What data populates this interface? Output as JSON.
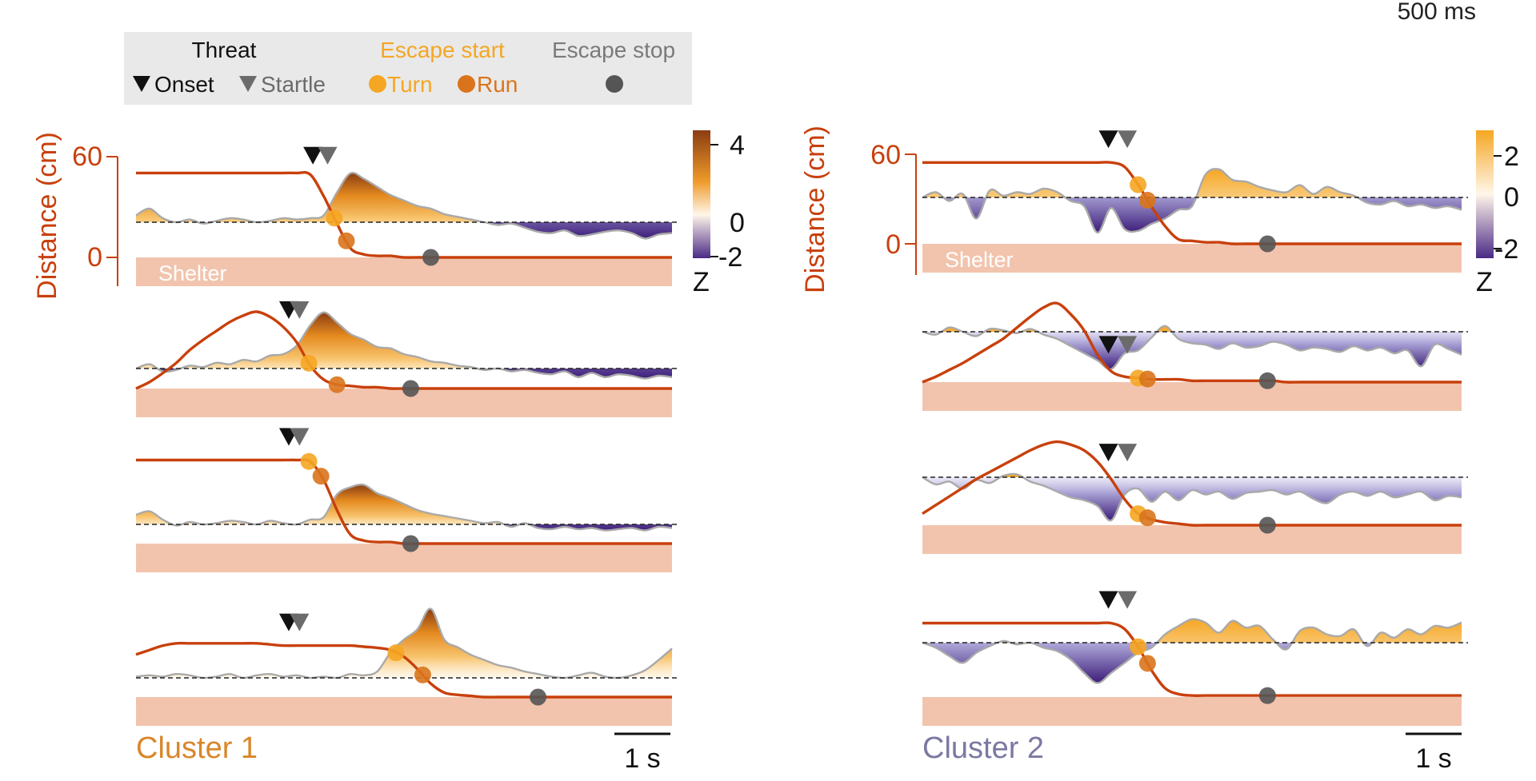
{
  "corner_label": "500 ms",
  "legend": {
    "threat_header": "Threat",
    "onset_label": "Onset",
    "startle_label": "Startle",
    "escape_start_header": "Escape start",
    "turn_label": "Turn",
    "run_label": "Run",
    "escape_stop_header": "Escape stop"
  },
  "colors": {
    "distance": "#c8400c",
    "shelter": "#f2c4ad",
    "onset": "#111111",
    "startle": "#6b6b6b",
    "turn": "#f5a623",
    "run": "#d9741c",
    "stop": "#555555",
    "cluster1": "#d9862a",
    "cluster2": "#7b78a2",
    "warm": "#b8621a",
    "cool": "#4a2a86"
  },
  "chart_data": [
    {
      "type": "line",
      "title": "Cluster 1",
      "ylabel": "Distance (cm)",
      "yticks": [
        "60",
        "0"
      ],
      "shelter_label": "Shelter",
      "scalebar_label": "1 s",
      "colorbar": {
        "label": "Z",
        "ticks": [
          "4",
          "0",
          "-2"
        ],
        "range": [
          -2,
          4
        ]
      },
      "traces": [
        {
          "distance": [
            55,
            55,
            55,
            55,
            55,
            55,
            55,
            55,
            55,
            55,
            55,
            55,
            55,
            54,
            40,
            22,
            6,
            2,
            1,
            1,
            0,
            0,
            0,
            0,
            0,
            0,
            0,
            0,
            0,
            0,
            0,
            0,
            0,
            0,
            0,
            0,
            0,
            0,
            0,
            0,
            0
          ],
          "z": [
            0.5,
            1.0,
            0.3,
            0.0,
            0.2,
            -0.1,
            0.1,
            0.3,
            0.2,
            0.0,
            0.1,
            0.3,
            0.2,
            0.3,
            0.5,
            2.2,
            3.6,
            3.2,
            2.6,
            2.0,
            1.6,
            1.2,
            1.0,
            0.6,
            0.4,
            0.2,
            0.0,
            -0.2,
            -0.1,
            -0.4,
            -0.7,
            -0.8,
            -0.6,
            -1.0,
            -0.9,
            -0.7,
            -0.6,
            -0.8,
            -1.2,
            -0.9,
            -0.8
          ],
          "events": {
            "onset": 13.2,
            "startle": 14.3,
            "turn": 14.8,
            "run": 15.7,
            "stop": 22.0
          }
        },
        {
          "distance": [
            0,
            5,
            12,
            20,
            30,
            38,
            45,
            52,
            57,
            60,
            56,
            48,
            36,
            18,
            7,
            3,
            2,
            1,
            1,
            0,
            0,
            0,
            0,
            0,
            0,
            0,
            0,
            0,
            0,
            0,
            0,
            0,
            0,
            0,
            0,
            0,
            0,
            0,
            0,
            0,
            0
          ],
          "z": [
            0.0,
            0.3,
            -0.2,
            -0.1,
            0.2,
            0.1,
            0.4,
            0.3,
            0.6,
            0.5,
            0.9,
            1.0,
            1.6,
            3.0,
            3.9,
            3.2,
            2.4,
            2.0,
            1.5,
            1.4,
            1.0,
            0.8,
            0.5,
            0.4,
            0.2,
            0.1,
            -0.1,
            0.0,
            -0.2,
            -0.1,
            -0.3,
            -0.4,
            -0.2,
            -0.6,
            -0.3,
            -0.6,
            -0.4,
            -0.5,
            -0.7,
            -0.5,
            -0.6
          ],
          "events": {
            "onset": 11.4,
            "startle": 12.2,
            "turn": 12.9,
            "run": 15.0,
            "stop": 20.5
          }
        },
        {
          "distance": [
            55,
            55,
            55,
            55,
            55,
            55,
            55,
            55,
            55,
            55,
            55,
            55,
            55,
            54,
            42,
            22,
            6,
            2,
            1,
            1,
            0,
            0,
            0,
            0,
            0,
            0,
            0,
            0,
            0,
            0,
            0,
            0,
            0,
            0,
            0,
            0,
            0,
            0,
            0,
            0,
            0
          ],
          "z": [
            0.8,
            1.1,
            0.4,
            -0.1,
            0.2,
            0.0,
            0.1,
            0.3,
            0.2,
            0.0,
            0.3,
            0.1,
            0.0,
            0.4,
            0.6,
            2.5,
            3.1,
            3.3,
            2.6,
            2.2,
            1.7,
            1.2,
            0.9,
            0.7,
            0.5,
            0.3,
            0.1,
            0.2,
            -0.2,
            0.1,
            -0.3,
            -0.4,
            -0.2,
            -0.4,
            -0.3,
            -0.5,
            -0.4,
            -0.3,
            -0.5,
            -0.2,
            -0.3
          ],
          "events": {
            "onset": 11.4,
            "startle": 12.2,
            "turn": 12.9,
            "run": 13.8,
            "stop": 20.5
          }
        },
        {
          "distance": [
            38,
            42,
            46,
            48,
            48,
            48,
            48,
            48,
            48,
            48,
            47,
            46,
            46,
            46,
            46,
            46,
            46,
            45,
            44,
            42,
            36,
            25,
            12,
            4,
            2,
            1,
            0,
            0,
            0,
            0,
            0,
            0,
            0,
            0,
            0,
            0,
            0,
            0,
            0,
            0,
            0
          ],
          "z": [
            0.1,
            0.2,
            0.1,
            0.3,
            0.2,
            0.0,
            0.1,
            0.3,
            0.0,
            0.2,
            0.3,
            0.1,
            0.2,
            0.0,
            0.1,
            0.0,
            0.3,
            0.2,
            0.5,
            2.0,
            3.0,
            3.8,
            5.4,
            3.0,
            2.4,
            1.8,
            1.4,
            1.0,
            0.8,
            0.5,
            0.3,
            0.1,
            0.0,
            0.2,
            0.4,
            0.1,
            0.0,
            0.2,
            0.6,
            1.4,
            2.3
          ],
          "events": {
            "onset": 11.4,
            "startle": 12.2,
            "turn": 19.4,
            "run": 21.4,
            "stop": 30.0
          }
        }
      ]
    },
    {
      "type": "line",
      "title": "Cluster 2",
      "ylabel": "Distance (cm)",
      "yticks": [
        "60",
        "0"
      ],
      "shelter_label": "Shelter",
      "scalebar_label": "1 s",
      "colorbar": {
        "label": "Z",
        "ticks": [
          "2",
          "0",
          "-2"
        ],
        "range": [
          -2,
          2
        ]
      },
      "traces": [
        {
          "distance": [
            55,
            55,
            55,
            55,
            55,
            55,
            55,
            55,
            55,
            55,
            55,
            55,
            55,
            55,
            55,
            52,
            40,
            25,
            12,
            3,
            2,
            1,
            1,
            0,
            0,
            0,
            0,
            0,
            0,
            0,
            0,
            0,
            0,
            0,
            0,
            0,
            0,
            0,
            0,
            0,
            0
          ],
          "z": [
            0.0,
            0.3,
            -0.2,
            0.2,
            -1.2,
            0.4,
            0.1,
            0.3,
            0.2,
            0.5,
            0.3,
            -0.2,
            -0.5,
            -2.0,
            -0.6,
            -1.8,
            -1.9,
            -1.5,
            -1.2,
            -0.7,
            -0.5,
            1.3,
            1.6,
            1.0,
            0.9,
            0.6,
            0.4,
            0.3,
            0.7,
            0.2,
            0.6,
            0.3,
            0.1,
            -0.3,
            -0.4,
            -0.2,
            -0.5,
            -0.4,
            -0.6,
            -0.5,
            -0.7
          ],
          "events": {
            "onset": 13.8,
            "startle": 15.2,
            "turn": 16.0,
            "run": 16.7,
            "stop": 25.6
          }
        },
        {
          "distance": [
            0,
            4,
            9,
            14,
            20,
            26,
            32,
            40,
            48,
            55,
            58,
            50,
            38,
            20,
            8,
            4,
            3,
            2,
            2,
            2,
            1,
            1,
            1,
            1,
            1,
            1,
            1,
            0,
            0,
            0,
            0,
            0,
            0,
            0,
            0,
            0,
            0,
            0,
            0,
            0,
            0
          ],
          "z": [
            0.0,
            -0.2,
            0.3,
            0.0,
            -0.3,
            0.2,
            0.1,
            -0.1,
            0.2,
            -0.2,
            -0.5,
            -1.0,
            -1.5,
            -2.0,
            -2.6,
            -1.5,
            -1.3,
            -0.4,
            0.4,
            -0.5,
            -0.8,
            -0.9,
            -1.2,
            -0.8,
            -1.1,
            -1.0,
            -0.7,
            -0.9,
            -1.3,
            -1.1,
            -1.2,
            -1.4,
            -1.0,
            -1.3,
            -1.1,
            -1.5,
            -1.3,
            -2.4,
            -0.9,
            -1.2,
            -1.6
          ],
          "events": {
            "onset": 13.8,
            "startle": 15.2,
            "turn": 16.0,
            "run": 16.7,
            "stop": 25.6
          }
        },
        {
          "distance": [
            8,
            14,
            20,
            26,
            32,
            37,
            42,
            47,
            52,
            56,
            58,
            56,
            52,
            44,
            32,
            18,
            8,
            4,
            2,
            1,
            0,
            0,
            0,
            0,
            0,
            0,
            0,
            0,
            0,
            0,
            0,
            0,
            0,
            0,
            0,
            0,
            0,
            0,
            0,
            0,
            0
          ],
          "z": [
            0.0,
            -0.5,
            -0.3,
            -0.8,
            -0.2,
            -0.4,
            0.1,
            0.2,
            -0.3,
            -0.6,
            -1.0,
            -1.4,
            -1.6,
            -2.0,
            -3.0,
            -1.2,
            -0.8,
            -1.7,
            -1.0,
            -1.6,
            -0.9,
            -1.2,
            -1.0,
            -1.5,
            -1.1,
            -1.0,
            -0.9,
            -1.2,
            -1.0,
            -1.5,
            -1.8,
            -1.2,
            -1.0,
            -1.3,
            -1.0,
            -1.4,
            -1.2,
            -1.0,
            -1.6,
            -1.3,
            -1.4
          ],
          "events": {
            "onset": 13.8,
            "startle": 15.2,
            "turn": 16.0,
            "run": 16.7,
            "stop": 25.6
          }
        },
        {
          "distance": [
            50,
            50,
            50,
            50,
            50,
            50,
            50,
            50,
            50,
            50,
            50,
            50,
            50,
            50,
            50,
            46,
            34,
            18,
            6,
            2,
            1,
            1,
            1,
            1,
            1,
            1,
            1,
            1,
            1,
            1,
            1,
            1,
            1,
            1,
            1,
            1,
            1,
            1,
            1,
            1,
            1
          ],
          "z": [
            0.0,
            -0.3,
            -0.8,
            -1.2,
            -0.6,
            -0.2,
            0.1,
            -0.1,
            0.0,
            -0.3,
            -0.5,
            -1.0,
            -1.8,
            -2.4,
            -1.8,
            -1.2,
            -0.6,
            -0.3,
            0.5,
            1.0,
            1.4,
            1.2,
            0.6,
            1.3,
            0.9,
            1.0,
            0.2,
            -0.4,
            0.7,
            0.9,
            0.5,
            0.4,
            0.8,
            -0.2,
            0.6,
            0.3,
            0.8,
            0.5,
            1.0,
            0.9,
            1.2
          ],
          "events": {
            "onset": 13.8,
            "startle": 15.2,
            "turn": 16.0,
            "run": 16.7,
            "stop": 25.6
          }
        }
      ]
    }
  ]
}
